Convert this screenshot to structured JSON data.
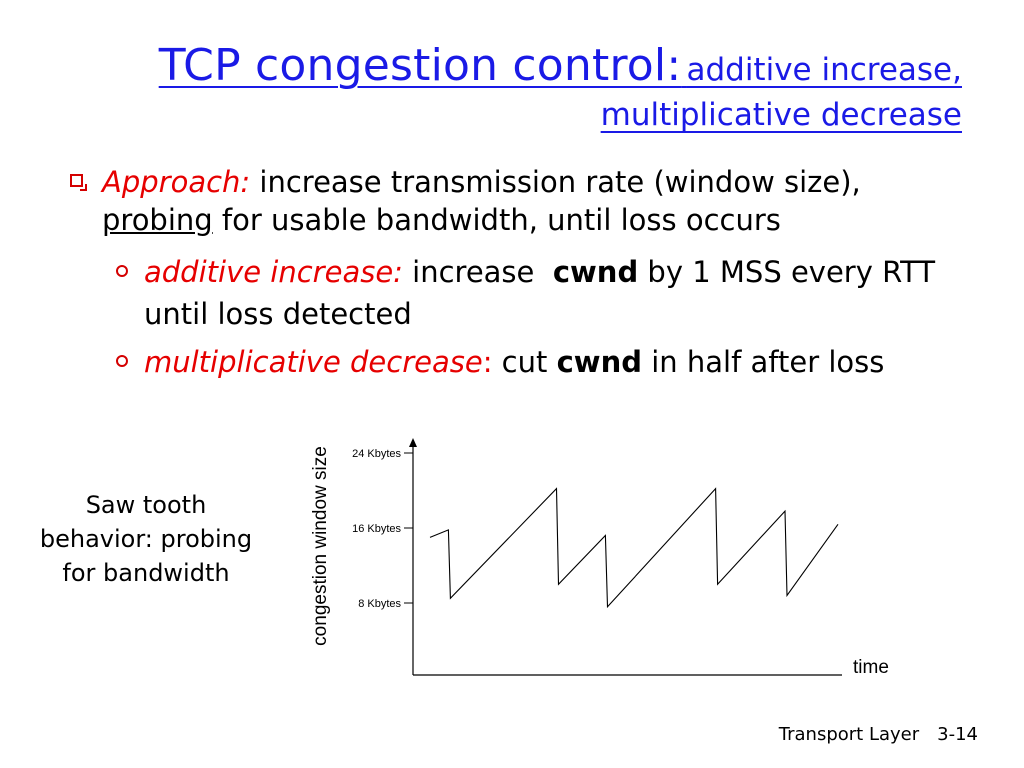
{
  "title": {
    "main": "TCP congestion control:",
    "sub1": "additive increase,",
    "sub2": "multiplicative decrease"
  },
  "bullet": {
    "label": "Approach:",
    "text1": " increase transmission rate (window size),",
    "underlined": "probing",
    "text2": " for usable bandwidth, until loss occurs",
    "subs": [
      {
        "label": "additive increase:",
        "text1": " increase  ",
        "bold": "cwnd",
        "text2": " by 1 MSS every RTT until loss detected"
      },
      {
        "label": "multiplicative decrease",
        "colon": ":",
        "text1": " cut ",
        "bold": "cwnd",
        "text2": " in half after loss"
      }
    ]
  },
  "caption": "Saw tooth behavior: probing for bandwidth",
  "chart_data": {
    "type": "line",
    "xlabel": "time",
    "ylabel": "congestion window size",
    "ticks": [
      "24 Kbytes",
      "16 Kbytes",
      "8 Kbytes"
    ],
    "tick_values": [
      24,
      16,
      8
    ],
    "ylim": [
      0,
      26
    ],
    "xlim": [
      0,
      100
    ],
    "series": [
      {
        "values": [
          {
            "x": 0,
            "y": 15
          },
          {
            "x": 4.5,
            "y": 15.8
          },
          {
            "x": 5,
            "y": 8.5
          },
          {
            "x": 31,
            "y": 20.2
          },
          {
            "x": 31.5,
            "y": 10
          },
          {
            "x": 43,
            "y": 15.2
          },
          {
            "x": 43.5,
            "y": 7.6
          },
          {
            "x": 70,
            "y": 20.2
          },
          {
            "x": 70.5,
            "y": 10
          },
          {
            "x": 87,
            "y": 17.8
          },
          {
            "x": 87.5,
            "y": 8.8
          },
          {
            "x": 100,
            "y": 16.4
          }
        ]
      }
    ]
  },
  "footer": {
    "chapter": "Transport Layer",
    "page": "3-14"
  }
}
